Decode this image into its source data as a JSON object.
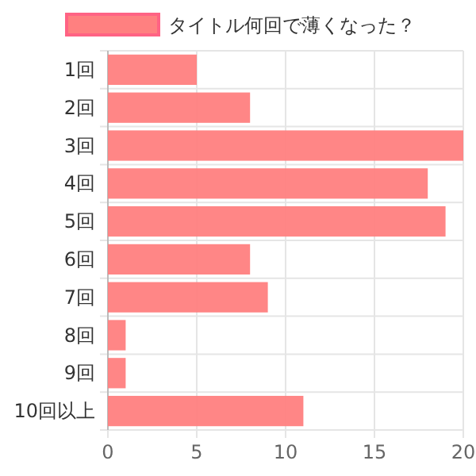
{
  "chart_data": {
    "type": "bar",
    "orientation": "horizontal",
    "categories": [
      "1回",
      "2回",
      "3回",
      "4回",
      "5回",
      "6回",
      "7回",
      "8回",
      "9回",
      "10回以上"
    ],
    "series": [
      {
        "name": "タイトル何回で薄くなった？",
        "color": "#ff8080",
        "values": [
          5,
          8,
          20,
          18,
          19,
          8,
          9,
          1,
          1,
          11
        ]
      }
    ],
    "xlim": [
      0,
      20
    ],
    "xticks": [
      0,
      5,
      10,
      15,
      20
    ],
    "grid": true,
    "legend": "top"
  }
}
